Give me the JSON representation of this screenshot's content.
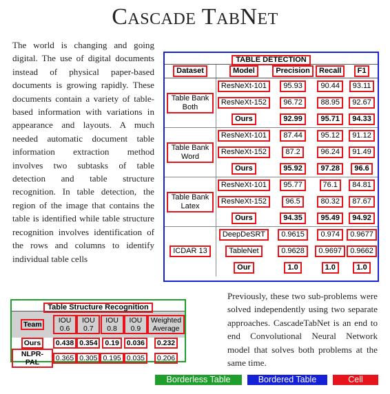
{
  "title": "Cascade TabNet",
  "intro_text": "The world is changing and going digital. The use of digital documents instead of physical paper-based documents is growing rapidly. These documents contain a variety of table-based information with variations in appearance and layouts. A much needed automatic document table information extraction method involves two subtasks of table detection and table structure recognition. In table detection, the region of the image that contains the table is identified while table structure recognition involves identification of the rows and columns to identify individual table cells",
  "conclusion_text": "Previously, these two sub-problems were solved independently using two separate approaches. CascadeTabNet is an end to end Convolutional Neural Network model that solves both problems at the same time.",
  "detection_table": {
    "title": "TABLE DETECTION",
    "headers": [
      "Dataset",
      "Model",
      "Precision",
      "Recall",
      "F1"
    ],
    "groups": [
      {
        "dataset": "Table Bank Both",
        "rows": [
          {
            "model": "ResNeXt-101",
            "precision": "95.93",
            "recall": "90.44",
            "f1": "93.11",
            "bold": false
          },
          {
            "model": "ResNeXt-152",
            "precision": "96.72",
            "recall": "88.95",
            "f1": "92.67",
            "bold": false
          },
          {
            "model": "Ours",
            "precision": "92.99",
            "recall": "95.71",
            "f1": "94.33",
            "bold": true
          }
        ]
      },
      {
        "dataset": "Table Bank Word",
        "rows": [
          {
            "model": "ResNeXt-101",
            "precision": "87.44",
            "recall": "95.12",
            "f1": "91.12",
            "bold": false
          },
          {
            "model": "ResNeXt-152",
            "precision": "87.2",
            "recall": "96.24",
            "f1": "91.49",
            "bold": false
          },
          {
            "model": "Ours",
            "precision": "95.92",
            "recall": "97.28",
            "f1": "96.6",
            "bold": true
          }
        ]
      },
      {
        "dataset": "Table Bank Latex",
        "rows": [
          {
            "model": "ResNeXt-101",
            "precision": "95.77",
            "recall": "76.1",
            "f1": "84.81",
            "bold": false
          },
          {
            "model": "ResNeXt-152",
            "precision": "96.5",
            "recall": "80.32",
            "f1": "87.67",
            "bold": false
          },
          {
            "model": "Ours",
            "precision": "94.35",
            "recall": "95.49",
            "f1": "94.92",
            "bold": true
          }
        ]
      },
      {
        "dataset": "ICDAR 13",
        "rows": [
          {
            "model": "DeepDeSRT",
            "precision": "0.9615",
            "recall": "0.974",
            "f1": "0.9677",
            "bold": false
          },
          {
            "model": "TableNet",
            "precision": "0.9628",
            "recall": "0.9697",
            "f1": "0.9662",
            "bold": false
          },
          {
            "model": "Our",
            "precision": "1.0",
            "recall": "1.0",
            "f1": "1.0",
            "bold": true
          }
        ]
      }
    ]
  },
  "structure_table": {
    "title": "Table Structure Recognition",
    "headers": [
      "Team",
      "IOU 0.6",
      "IOU 0.7",
      "IOU 0.8",
      "IOU 0.9",
      "Weighted Average"
    ],
    "rows": [
      {
        "team": "Ours",
        "values": [
          "0.438",
          "0.354",
          "0.19",
          "0.036",
          "0.232"
        ],
        "bold": true
      },
      {
        "team": "NLPR-PAL",
        "values": [
          "0.365",
          "0.305",
          "0.195",
          "0.035",
          "0.206"
        ],
        "bold": false
      }
    ]
  },
  "legend": [
    {
      "label": "Borderless Table",
      "color": "#1e9e2a"
    },
    {
      "label": "Bordered Table",
      "color": "#1421d6"
    },
    {
      "label": "Cell",
      "color": "#e8141b"
    }
  ]
}
